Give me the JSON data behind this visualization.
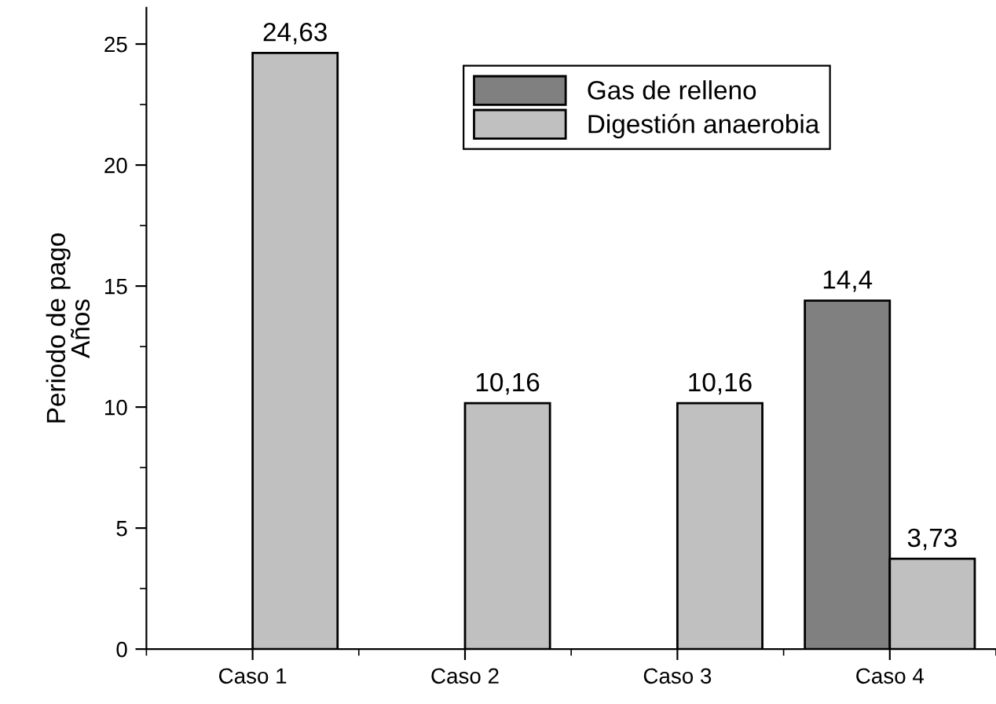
{
  "chart_data": {
    "type": "bar",
    "ylabel": "Periodo de pago\nAños",
    "categories": [
      "Caso 1",
      "Caso 2",
      "Caso 3",
      "Caso 4"
    ],
    "series": [
      {
        "name": "Gas de relleno",
        "color": "#808080",
        "values": [
          null,
          null,
          null,
          14.4
        ],
        "value_labels": [
          null,
          null,
          null,
          "14,4"
        ]
      },
      {
        "name": "Digestión anaerobia",
        "color": "#c0c0c0",
        "values": [
          24.63,
          10.16,
          10.16,
          3.73
        ],
        "value_labels": [
          "24,63",
          "10,16",
          "10,16",
          "3,73"
        ]
      }
    ],
    "ylim": [
      0,
      26.5
    ],
    "yticks": [
      0,
      5,
      10,
      15,
      20,
      25
    ],
    "grid": false,
    "legend": "top right"
  }
}
